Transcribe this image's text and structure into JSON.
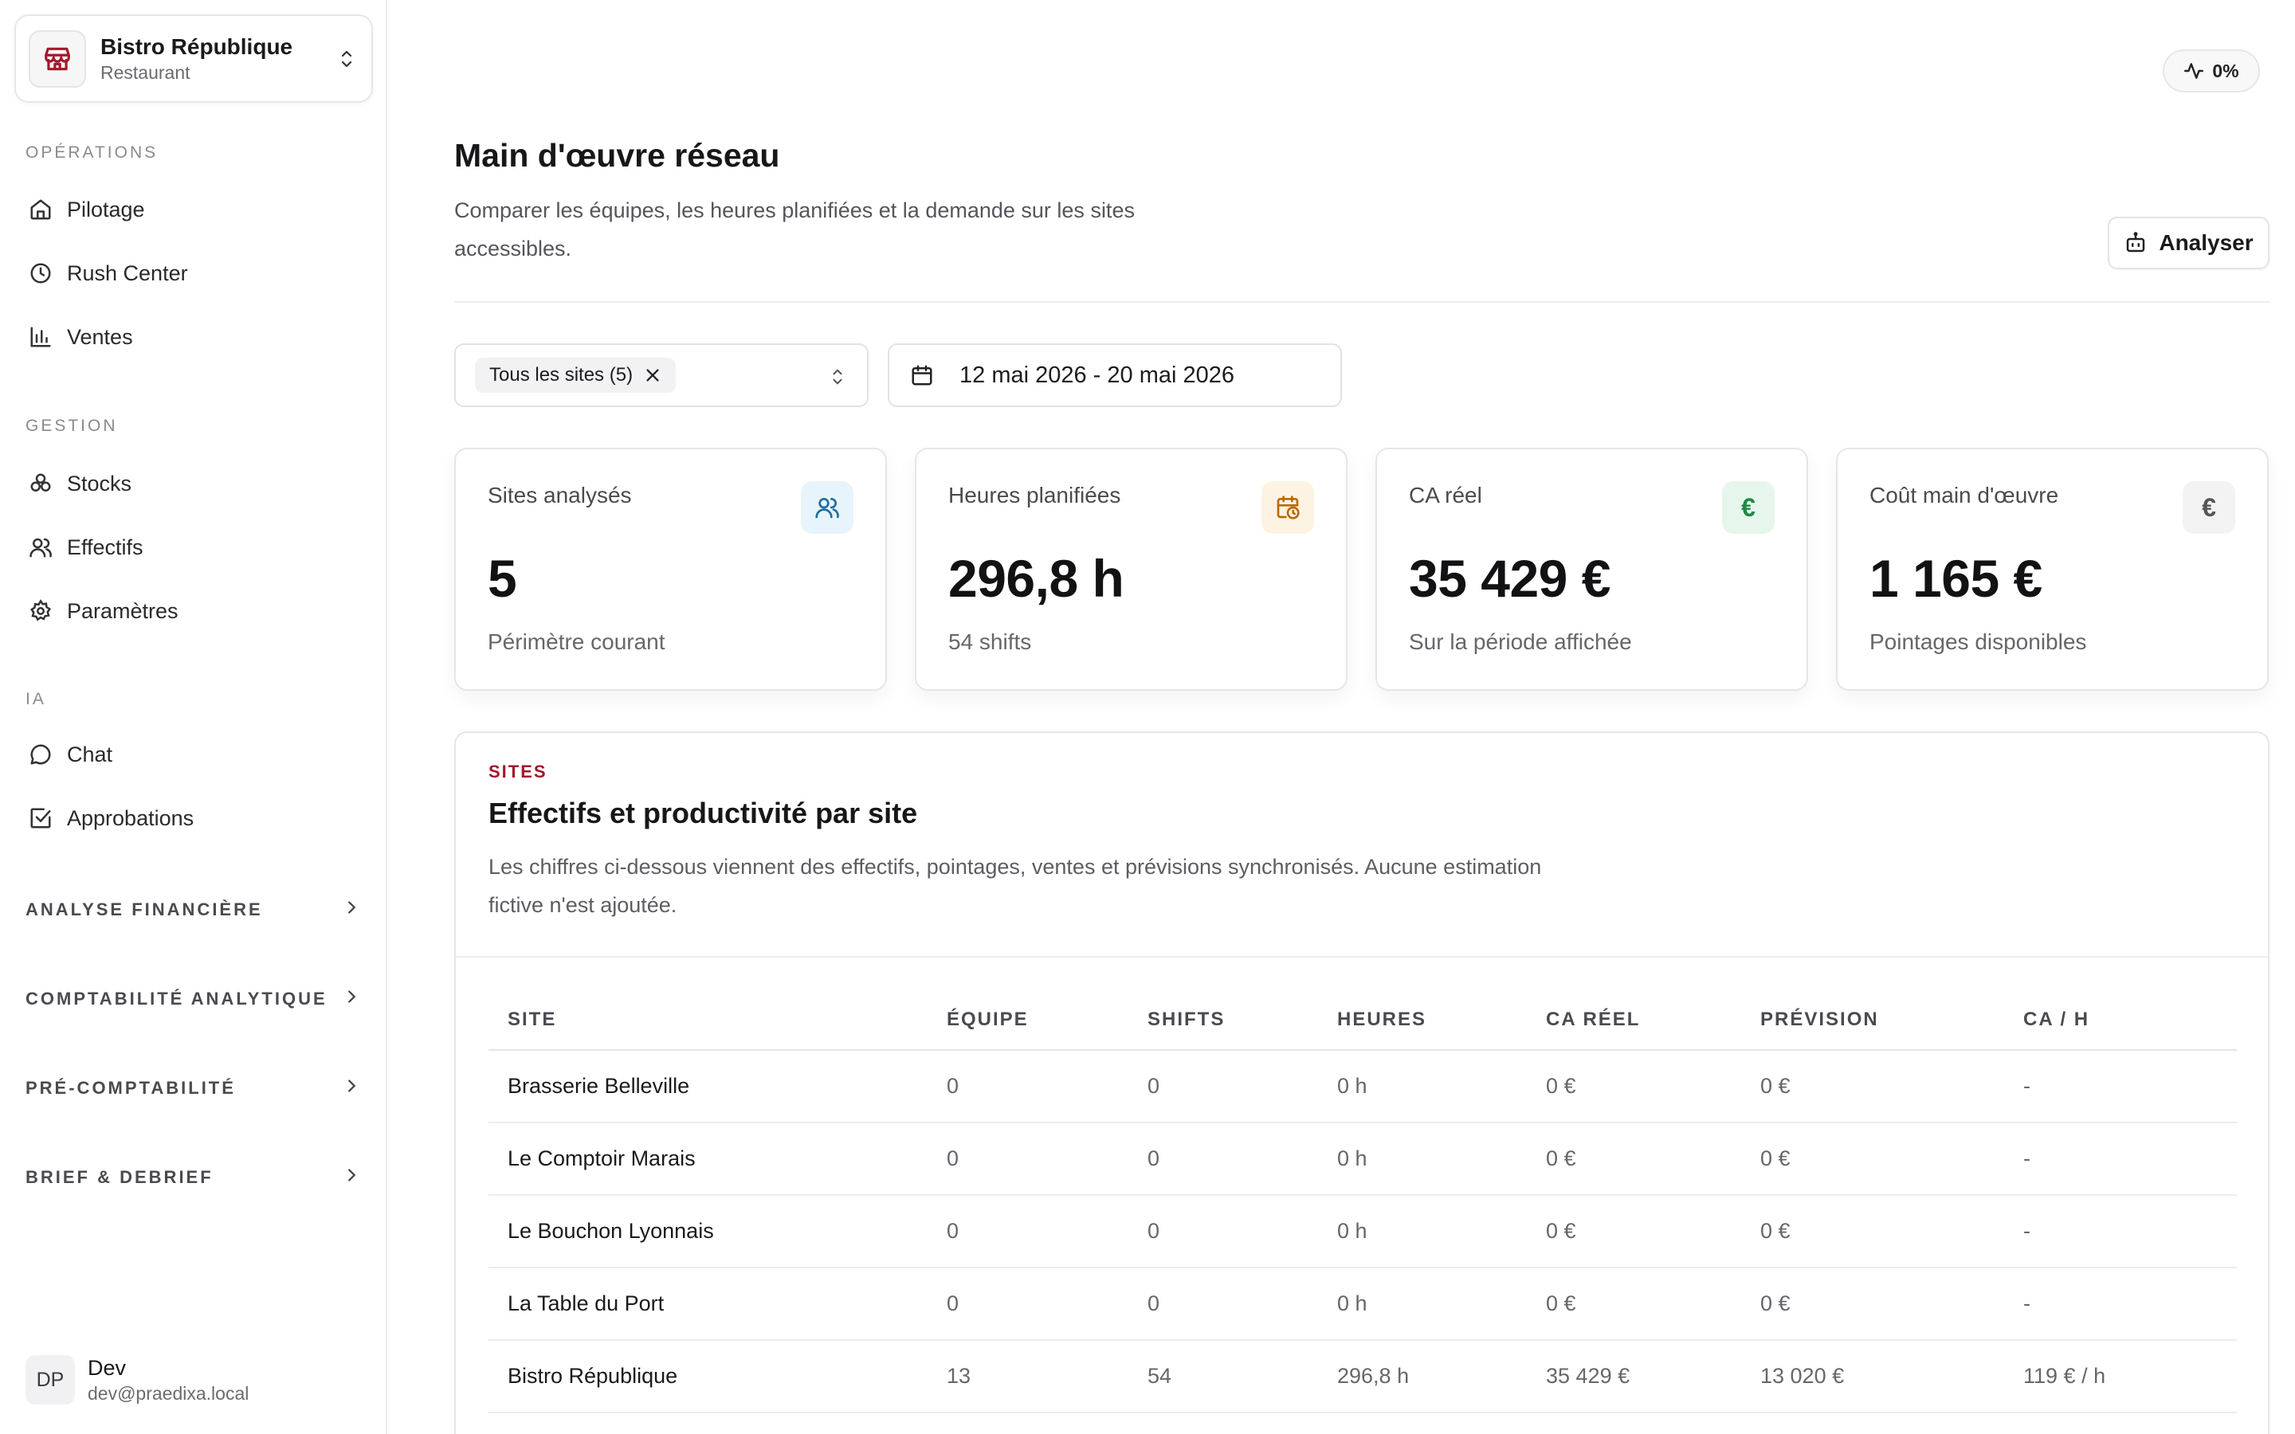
{
  "org": {
    "name": "Bistro République",
    "type": "Restaurant"
  },
  "sidebar": {
    "sections": [
      {
        "label": "OPÉRATIONS",
        "items": [
          {
            "label": "Pilotage",
            "icon": "home-icon"
          },
          {
            "label": "Rush Center",
            "icon": "clock-icon"
          },
          {
            "label": "Ventes",
            "icon": "bar-chart-icon"
          }
        ]
      },
      {
        "label": "GESTION",
        "items": [
          {
            "label": "Stocks",
            "icon": "boxes-icon"
          },
          {
            "label": "Effectifs",
            "icon": "users-icon"
          },
          {
            "label": "Paramètres",
            "icon": "gear-icon"
          }
        ]
      },
      {
        "label": "IA",
        "items": [
          {
            "label": "Chat",
            "icon": "chat-bubble-icon"
          },
          {
            "label": "Approbations",
            "icon": "checkbox-icon"
          }
        ]
      }
    ],
    "groups": [
      "ANALYSE FINANCIÈRE",
      "COMPTABILITÉ ANALYTIQUE",
      "PRÉ-COMPTABILITÉ",
      "BRIEF & DEBRIEF"
    ],
    "user": {
      "initials": "DP",
      "name": "Dev",
      "email": "dev@praedixa.local"
    }
  },
  "header": {
    "activity": "0%",
    "title": "Main d'œuvre réseau",
    "subtitle": "Comparer les équipes, les heures planifiées et la demande sur les sites accessibles.",
    "analyse_label": "Analyser"
  },
  "filters": {
    "sites_chip": "Tous les sites (5)",
    "date_range": "12 mai 2026 - 20 mai 2026"
  },
  "kpis": [
    {
      "label": "Sites analysés",
      "value": "5",
      "foot": "Périmètre courant",
      "icon": "users-icon",
      "icon_bg": "#e8f4fb",
      "icon_color": "#1f6e9c"
    },
    {
      "label": "Heures planifiées",
      "value": "296,8 h",
      "foot": "54 shifts",
      "icon": "calendar-clock-icon",
      "icon_bg": "#fdf3e3",
      "icon_color": "#b86a0c"
    },
    {
      "label": "CA réel",
      "value": "35 429 €",
      "foot": "Sur la période affichée",
      "icon": "euro-icon",
      "icon_bg": "#e6f6ec",
      "icon_color": "#1f8a47"
    },
    {
      "label": "Coût main d'œuvre",
      "value": "1 165 €",
      "foot": "Pointages disponibles",
      "icon": "euro-icon",
      "icon_bg": "#f3f3f4",
      "icon_color": "#55555b"
    }
  ],
  "sites_card": {
    "kicker": "SITES",
    "title": "Effectifs et productivité par site",
    "description": "Les chiffres ci-dessous viennent des effectifs, pointages, ventes et prévisions synchronisés. Aucune estimation fictive n'est ajoutée.",
    "columns": [
      "SITE",
      "ÉQUIPE",
      "SHIFTS",
      "HEURES",
      "CA RÉEL",
      "PRÉVISION",
      "CA / H"
    ],
    "rows": [
      [
        "Brasserie Belleville",
        "0",
        "0",
        "0 h",
        "0 €",
        "0 €",
        "-"
      ],
      [
        "Le Comptoir Marais",
        "0",
        "0",
        "0 h",
        "0 €",
        "0 €",
        "-"
      ],
      [
        "Le Bouchon Lyonnais",
        "0",
        "0",
        "0 h",
        "0 €",
        "0 €",
        "-"
      ],
      [
        "La Table du Port",
        "0",
        "0",
        "0 h",
        "0 €",
        "0 €",
        "-"
      ],
      [
        "Bistro République",
        "13",
        "54",
        "296,8 h",
        "35 429 €",
        "13 020 €",
        "119 € / h"
      ]
    ]
  },
  "colors": {
    "accent": "#a3182b",
    "border": "#e6e6ea",
    "muted": "#66666c"
  }
}
